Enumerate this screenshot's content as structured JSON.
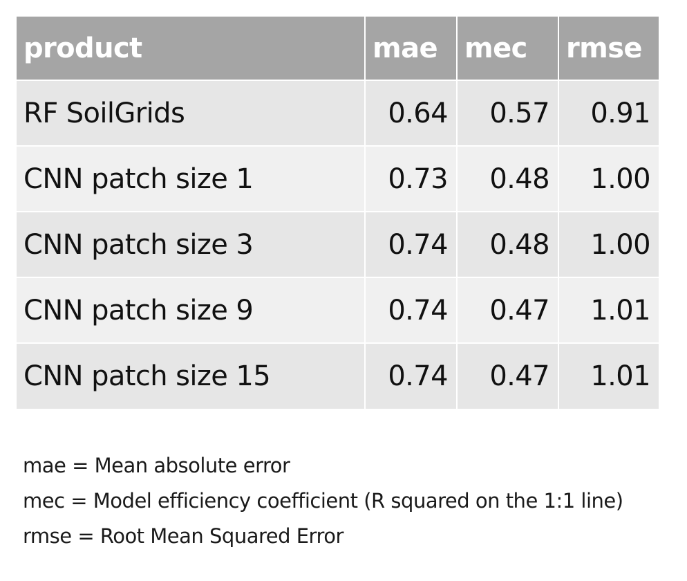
{
  "chart_data": {
    "type": "table",
    "columns": [
      "product",
      "mae",
      "mec",
      "rmse"
    ],
    "rows": [
      [
        "RF SoilGrids",
        "0.64",
        "0.57",
        "0.91"
      ],
      [
        "CNN patch size 1",
        "0.73",
        "0.48",
        "1.00"
      ],
      [
        "CNN patch size 3",
        "0.74",
        "0.48",
        "1.00"
      ],
      [
        "CNN patch size 9",
        "0.74",
        "0.47",
        "1.01"
      ],
      [
        "CNN patch size 15",
        "0.74",
        "0.47",
        "1.01"
      ]
    ],
    "colors": {
      "header_bg": "#a5a5a5",
      "header_text": "#ffffff",
      "row_odd_bg": "#e6e6e6",
      "row_even_bg": "#f0f0f0"
    }
  },
  "notes": [
    "mae = Mean absolute error",
    "mec = Model efficiency coefficient (R squared on the 1:1 line)",
    "rmse = Root Mean Squared Error"
  ]
}
